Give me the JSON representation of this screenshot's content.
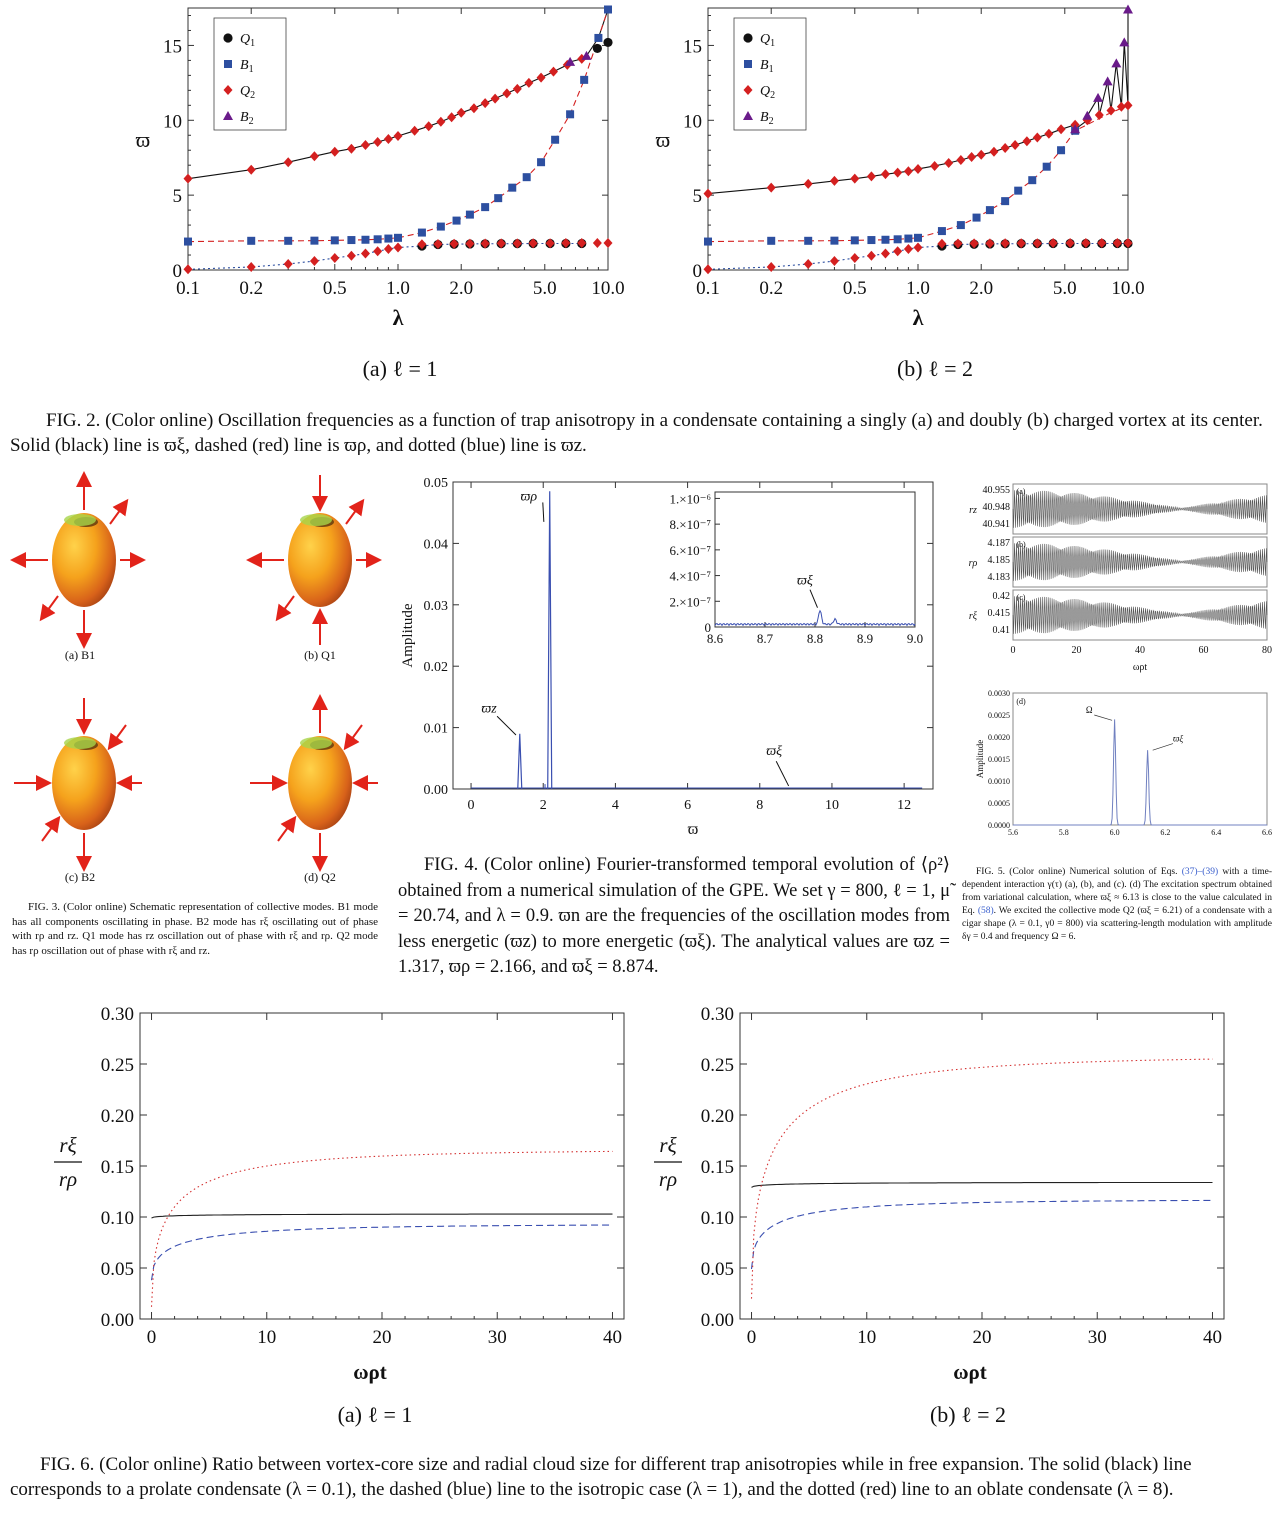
{
  "fig2": {
    "panels": [
      {
        "subcaption": "(a) ℓ = 1"
      },
      {
        "subcaption": "(b) ℓ = 2"
      }
    ],
    "legend": [
      "Q1",
      "B1",
      "Q2",
      "B2"
    ],
    "caption": "FIG. 2.  (Color online) Oscillation frequencies as a function of trap anisotropy in a condensate containing a singly (a) and doubly (b) charged vortex at its center. Solid (black) line is ϖξ, dashed (red) line is ϖρ, and dotted (blue) line is ϖz."
  },
  "fig3": {
    "labels": [
      "(a) B1",
      "(b) Q1",
      "(c) B2",
      "(d) Q2"
    ],
    "caption": "FIG. 3. (Color online) Schematic representation of collective modes. B1 mode has all components oscillating in phase. B2 mode has rξ oscillating out of phase with rρ and rz. Q1 mode has rz oscillation out of phase with rξ and rρ. Q2 mode has rρ oscillation out of phase with rξ and rz."
  },
  "fig4": {
    "caption": "FIG. 4.  (Color online) Fourier-transformed temporal evolution of ⟨ρ²⟩ obtained from a numerical simulation of the GPE. We set γ = 800, ℓ = 1, μ̃ = 20.74, and λ = 0.9. ϖn are the frequencies of the oscillation modes from less energetic (ϖz) to more energetic (ϖξ). The analytical values are ϖz = 1.317, ϖρ = 2.166, and ϖξ = 8.874."
  },
  "fig5": {
    "caption_a": "FIG. 5.  (Color online) Numerical solution of Eqs. ",
    "caption_ref1": "(37)–(39)",
    "caption_b": " with a time-dependent interaction γ(τ) (a), (b), and (c). (d) The excitation spectrum obtained from variational calculation, where ϖξ ≈ 6.13 is close to the value calculated in Eq. ",
    "caption_ref2": "(58)",
    "caption_c": ". We excited the collective mode Q2 (ϖξ = 6.21) of a condensate with a cigar shape (λ = 0.1, γ0 = 800) via scattering-length modulation with amplitude δγ = 0.4 and frequency Ω = 6."
  },
  "fig6": {
    "panels": [
      {
        "subcaption": "(a) ℓ = 1"
      },
      {
        "subcaption": "(b) ℓ = 2"
      }
    ],
    "caption": "FIG. 6.  (Color online) Ratio between vortex-core size and radial cloud size for different trap anisotropies while in free expansion. The solid (black) line corresponds to a prolate condensate (λ = 0.1), the dashed (blue) line to the isotropic case (λ = 1), and the dotted (red) line to an oblate condensate (λ = 8)."
  },
  "chart_data": [
    {
      "id": "fig2a",
      "type": "scatter",
      "xscale": "log",
      "xlim": [
        0.1,
        10
      ],
      "ylim": [
        0,
        17.5
      ],
      "xticks": [
        "0.1",
        "0.2",
        "0.5",
        "1.0",
        "2.0",
        "5.0",
        "10.0"
      ],
      "yticks": [
        "0",
        "5",
        "10",
        "15"
      ],
      "xlabel": "λ",
      "ylabel": "ϖ",
      "legend": "top-left",
      "series": [
        {
          "name": "Q1",
          "marker": "circle",
          "color": "#111111",
          "x": [
            1.3,
            1.55,
            1.85,
            2.2,
            2.6,
            3.1,
            3.7,
            4.4,
            5.3,
            6.3,
            7.5,
            8.9,
            10
          ],
          "y": [
            1.6,
            1.7,
            1.72,
            1.74,
            1.75,
            1.76,
            1.76,
            1.77,
            1.77,
            1.77,
            1.77,
            14.8,
            15.2
          ]
        },
        {
          "name": "B1",
          "marker": "square",
          "color": "#2d4fa0",
          "x": [
            0.1,
            0.2,
            0.3,
            0.4,
            0.5,
            0.6,
            0.7,
            0.8,
            0.9,
            1.0,
            1.3,
            1.6,
            1.9,
            2.2,
            2.6,
            3.0,
            3.5,
            4.1,
            4.8,
            5.6,
            6.6,
            7.7,
            9.0,
            10
          ],
          "y": [
            1.9,
            1.95,
            1.95,
            1.96,
            1.98,
            2.0,
            2.02,
            2.05,
            2.1,
            2.15,
            2.5,
            2.9,
            3.3,
            3.7,
            4.2,
            4.8,
            5.5,
            6.2,
            7.2,
            8.7,
            10.4,
            12.7,
            15.5,
            17.4
          ]
        },
        {
          "name": "Q2",
          "marker": "diamond",
          "color": "#d42020",
          "x": [
            0.1,
            0.2,
            0.3,
            0.4,
            0.5,
            0.6,
            0.7,
            0.8,
            0.9,
            1.0,
            1.3,
            1.55,
            1.85,
            2.2,
            2.6,
            3.1,
            3.7,
            4.4,
            5.3,
            6.3,
            7.5,
            8.9,
            10,
            0.1,
            0.2,
            0.3,
            0.4,
            0.5,
            0.6,
            0.7,
            0.8,
            0.9,
            1.0,
            1.2,
            1.4,
            1.6,
            1.8,
            2.0,
            2.3,
            2.6,
            2.9,
            3.3,
            3.7,
            4.2,
            4.8,
            5.5,
            6.4,
            7.5
          ],
          "y": [
            0.05,
            0.2,
            0.4,
            0.6,
            0.8,
            0.95,
            1.1,
            1.25,
            1.4,
            1.5,
            1.72,
            1.74,
            1.75,
            1.76,
            1.77,
            1.78,
            1.78,
            1.79,
            1.79,
            1.8,
            1.8,
            1.8,
            1.8,
            6.1,
            6.7,
            7.2,
            7.6,
            7.9,
            8.1,
            8.35,
            8.55,
            8.75,
            8.95,
            9.3,
            9.6,
            9.9,
            10.2,
            10.5,
            10.8,
            11.15,
            11.45,
            11.8,
            12.1,
            12.5,
            12.85,
            13.25,
            13.7,
            14.1
          ]
        },
        {
          "name": "B2",
          "marker": "triangle",
          "color": "#6a1b8a",
          "x": [
            6.6,
            7.9
          ],
          "y": [
            13.9,
            14.3
          ]
        }
      ],
      "lines": [
        {
          "style": "solid",
          "color": "#111111"
        },
        {
          "style": "dashed",
          "color": "#d42020"
        },
        {
          "style": "dotted",
          "color": "#2d4fa0"
        }
      ]
    },
    {
      "id": "fig2b",
      "type": "scatter",
      "xscale": "log",
      "xlim": [
        0.1,
        10
      ],
      "ylim": [
        0,
        17.5
      ],
      "xticks": [
        "0.1",
        "0.2",
        "0.5",
        "1.0",
        "2.0",
        "5.0",
        "10.0"
      ],
      "yticks": [
        "0",
        "5",
        "10",
        "15"
      ],
      "xlabel": "λ",
      "ylabel": "ϖ",
      "legend": "top-left",
      "series": [
        {
          "name": "Q1",
          "marker": "circle",
          "color": "#111111",
          "x": [
            1.3,
            1.55,
            1.85,
            2.2,
            2.6,
            3.1,
            3.7,
            4.4,
            5.3,
            6.3,
            7.5,
            8.9,
            10
          ],
          "y": [
            1.6,
            1.7,
            1.72,
            1.74,
            1.75,
            1.76,
            1.76,
            1.77,
            1.77,
            1.77,
            1.77,
            1.77,
            1.77
          ]
        },
        {
          "name": "B1",
          "marker": "square",
          "color": "#2d4fa0",
          "x": [
            0.1,
            0.2,
            0.3,
            0.4,
            0.5,
            0.6,
            0.7,
            0.8,
            0.9,
            1.0,
            1.3,
            1.6,
            1.9,
            2.2,
            2.6,
            3.0,
            3.5,
            4.1,
            4.8,
            5.6
          ],
          "y": [
            1.9,
            1.95,
            1.95,
            1.96,
            1.98,
            2.0,
            2.02,
            2.05,
            2.1,
            2.15,
            2.6,
            3.0,
            3.5,
            4.0,
            4.6,
            5.3,
            6.0,
            6.9,
            8.0,
            9.3
          ]
        },
        {
          "name": "Q2",
          "marker": "diamond",
          "color": "#d42020",
          "x": [
            0.1,
            0.2,
            0.3,
            0.4,
            0.5,
            0.6,
            0.7,
            0.8,
            0.9,
            1.0,
            1.3,
            1.55,
            1.85,
            2.2,
            2.6,
            3.1,
            3.7,
            4.4,
            5.3,
            6.3,
            7.5,
            8.9,
            10,
            0.1,
            0.2,
            0.3,
            0.4,
            0.5,
            0.6,
            0.7,
            0.8,
            0.9,
            1.0,
            1.2,
            1.4,
            1.6,
            1.8,
            2.0,
            2.3,
            2.6,
            2.9,
            3.3,
            3.7,
            4.2,
            4.8,
            5.6,
            6.4,
            7.3,
            8.3,
            9.3,
            10
          ],
          "y": [
            0.05,
            0.2,
            0.4,
            0.6,
            0.8,
            0.95,
            1.1,
            1.25,
            1.4,
            1.5,
            1.75,
            1.77,
            1.78,
            1.78,
            1.79,
            1.79,
            1.79,
            1.8,
            1.8,
            1.8,
            1.8,
            1.8,
            1.8,
            5.1,
            5.5,
            5.75,
            5.95,
            6.1,
            6.25,
            6.4,
            6.5,
            6.6,
            6.75,
            6.95,
            7.15,
            7.35,
            7.55,
            7.7,
            7.9,
            8.15,
            8.35,
            8.6,
            8.85,
            9.1,
            9.4,
            9.7,
            10.0,
            10.35,
            10.65,
            10.9,
            11.0
          ]
        },
        {
          "name": "B2",
          "marker": "triangle",
          "color": "#6a1b8a",
          "x": [
            5.6,
            6.4,
            7.2,
            8.0,
            8.8,
            9.6,
            10
          ],
          "y": [
            9.4,
            10.3,
            11.5,
            12.6,
            13.8,
            15.2,
            17.4
          ]
        }
      ]
    },
    {
      "id": "fig4",
      "type": "line",
      "xlim": [
        -0.5,
        12.8
      ],
      "ylim": [
        0,
        0.05
      ],
      "xticks": [
        "0",
        "2",
        "4",
        "6",
        "8",
        "10",
        "12"
      ],
      "yticks": [
        "0.00",
        "0.01",
        "0.02",
        "0.03",
        "0.04",
        "0.05"
      ],
      "xlabel": "ϖ",
      "ylabel": "Amplitude",
      "peaks": [
        {
          "x": 1.35,
          "y": 0.009
        },
        {
          "x": 2.18,
          "y": 0.0485
        }
      ],
      "annotations": [
        {
          "text": "ϖρ",
          "x": 1.6,
          "y": 0.047
        },
        {
          "text": "ϖz",
          "x": 0.5,
          "y": 0.0125
        },
        {
          "text": "ϖξ",
          "x": 8.4,
          "y": 0.0055
        }
      ],
      "inset": {
        "xlim": [
          8.6,
          9.0
        ],
        "ylim": [
          0,
          1.05e-06
        ],
        "xticks": [
          "8.6",
          "8.7",
          "8.8",
          "8.9",
          "9.0"
        ],
        "yticks": [
          "0",
          "2.×10⁻⁷",
          "4.×10⁻⁷",
          "6.×10⁻⁷",
          "8.×10⁻⁷",
          "1.×10⁻⁶"
        ],
        "peak": {
          "x": 8.81,
          "y": 1.1e-07
        },
        "annotation": "ϖξ"
      }
    },
    {
      "id": "fig5",
      "type": "line",
      "panels": [
        {
          "label": "(a)",
          "ylabel": "rz",
          "yticks": [
            "40.955",
            "40.948",
            "40.941"
          ]
        },
        {
          "label": "(b)",
          "ylabel": "rρ",
          "yticks": [
            "4.187",
            "4.185",
            "4.183"
          ]
        },
        {
          "label": "(c)",
          "ylabel": "rξ",
          "yticks": [
            "0.42",
            "0.415",
            "0.41"
          ]
        }
      ],
      "xlim": [
        0,
        80
      ],
      "xticks": [
        "0",
        "20",
        "40",
        "60",
        "80"
      ],
      "xlabel": "ωρt",
      "spectrum": {
        "label": "(d)",
        "xlim": [
          5.6,
          6.6
        ],
        "ylim": [
          0,
          0.003
        ],
        "xticks": [
          "5.6",
          "5.8",
          "6.0",
          "6.2",
          "6.4",
          "6.6"
        ],
        "yticks": [
          "0.0000",
          "0.0005",
          "0.0010",
          "0.0015",
          "0.0020",
          "0.0025",
          "0.0030"
        ],
        "ylabel": "Amplitude",
        "peaks": [
          {
            "x": 6.0,
            "y": 0.0024,
            "label": "Ω"
          },
          {
            "x": 6.13,
            "y": 0.0017,
            "label": "ϖξ"
          }
        ]
      }
    },
    {
      "id": "fig6a",
      "type": "line",
      "xlim": [
        -1,
        41
      ],
      "ylim": [
        0,
        0.3
      ],
      "xticks": [
        "0",
        "10",
        "20",
        "30",
        "40"
      ],
      "yticks": [
        "0.00",
        "0.05",
        "0.10",
        "0.15",
        "0.20",
        "0.25",
        "0.30"
      ],
      "xlabel": "ωρt",
      "ylabel": "rξ / rρ",
      "series": [
        {
          "style": "solid",
          "color": "#222222",
          "start": 0.099,
          "end": 0.103,
          "tau": 8
        },
        {
          "style": "dashed",
          "color": "#3a4fb0",
          "start": 0.038,
          "end": 0.093,
          "tau": 6
        },
        {
          "style": "dotted",
          "color": "#d43030",
          "start": 0.012,
          "end": 0.166,
          "tau": 5
        }
      ]
    },
    {
      "id": "fig6b",
      "type": "line",
      "xlim": [
        -1,
        41
      ],
      "ylim": [
        0,
        0.3
      ],
      "xticks": [
        "0",
        "10",
        "20",
        "30",
        "40"
      ],
      "yticks": [
        "0.00",
        "0.05",
        "0.10",
        "0.15",
        "0.20",
        "0.25",
        "0.30"
      ],
      "xlabel": "ωρt",
      "ylabel": "rξ / rρ",
      "series": [
        {
          "style": "solid",
          "color": "#222222",
          "start": 0.129,
          "end": 0.134,
          "tau": 8
        },
        {
          "style": "dashed",
          "color": "#3a4fb0",
          "start": 0.049,
          "end": 0.117,
          "tau": 5
        },
        {
          "style": "dotted",
          "color": "#d43030",
          "start": 0.02,
          "end": 0.258,
          "tau": 5.5
        }
      ]
    }
  ]
}
